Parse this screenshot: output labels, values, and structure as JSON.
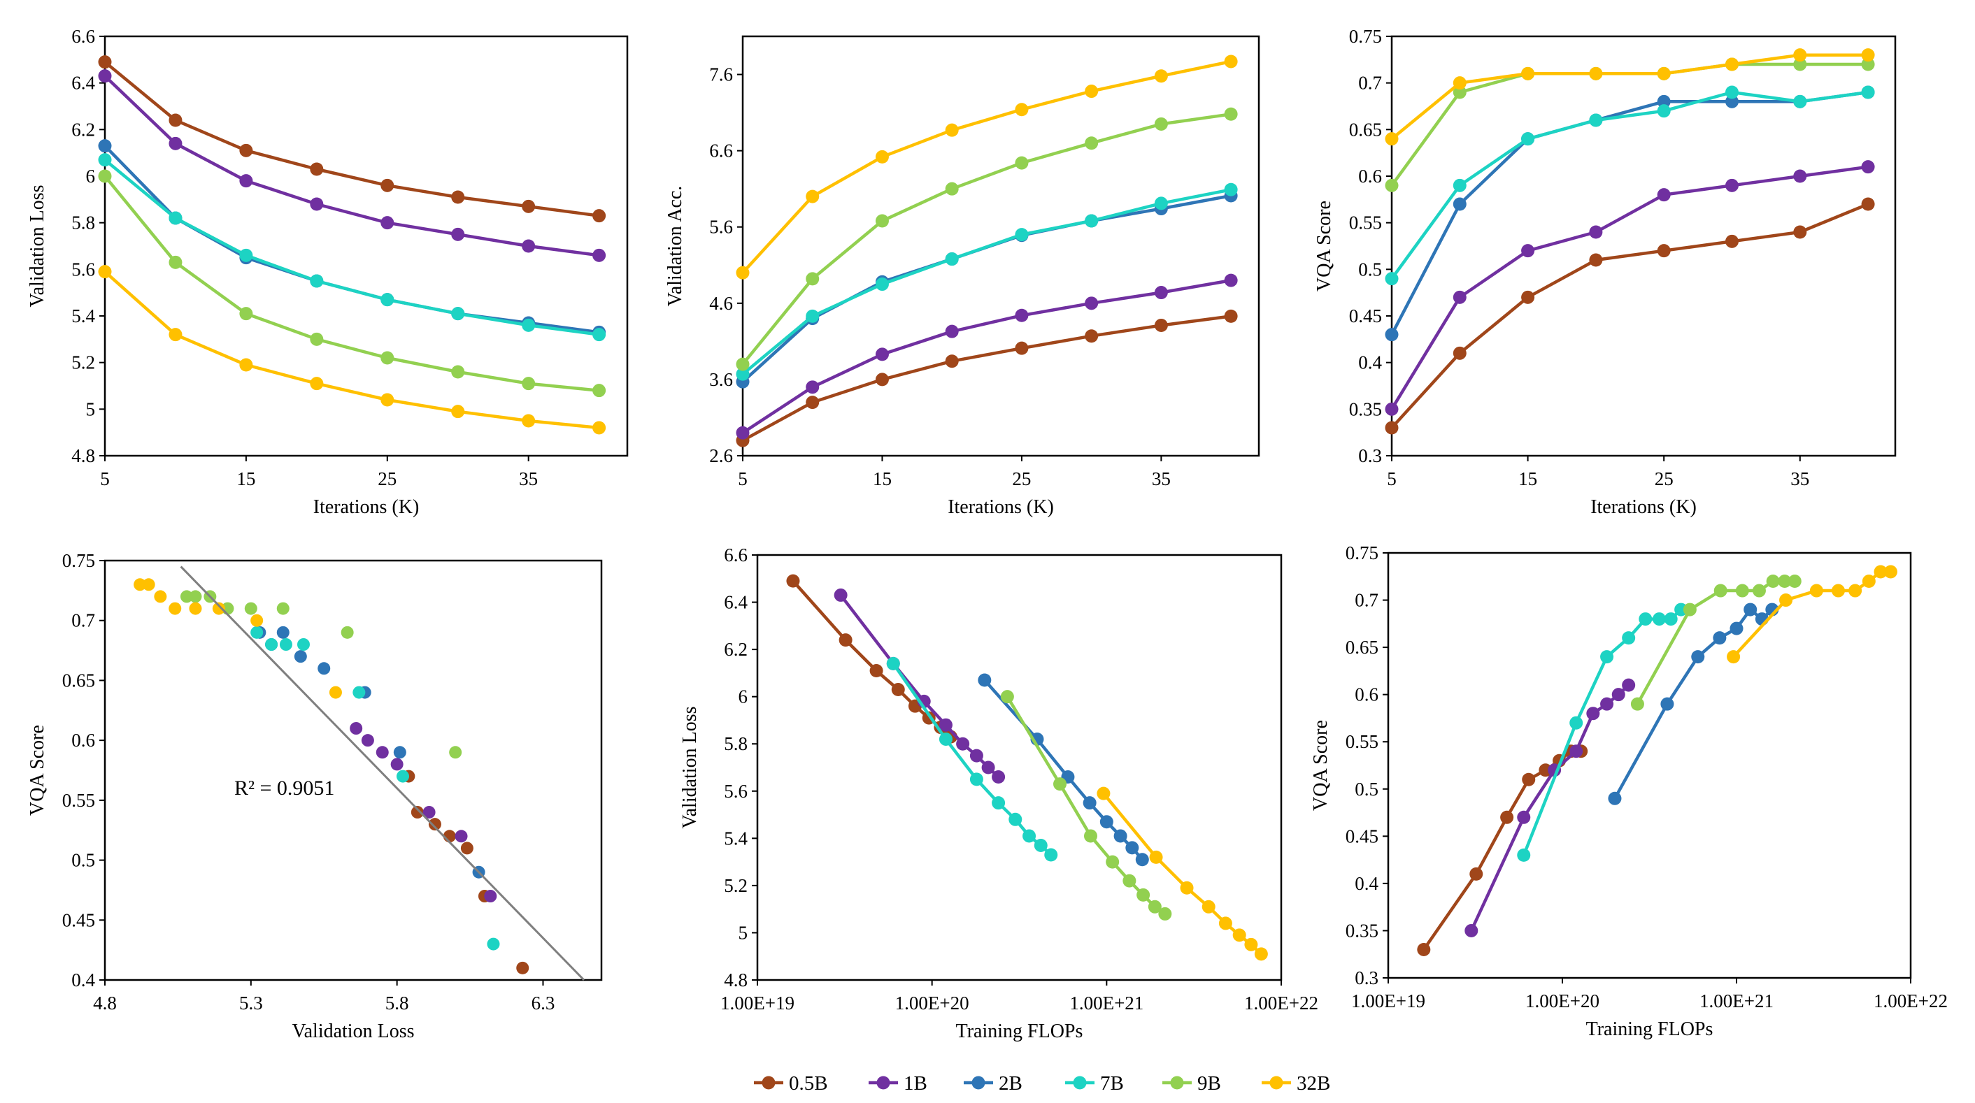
{
  "legend": {
    "series": [
      {
        "name": "0.5B",
        "color": "#A0461A"
      },
      {
        "name": "1B",
        "color": "#7030A0"
      },
      {
        "name": "2B",
        "color": "#2E75B6"
      },
      {
        "name": "7B",
        "color": "#1DD3C3"
      },
      {
        "name": "9B",
        "color": "#92D050"
      },
      {
        "name": "32B",
        "color": "#FFC000"
      }
    ]
  },
  "chart_data": [
    {
      "id": "loss_vs_iter",
      "type": "line",
      "xlabel": "Iterations (K)",
      "ylabel": "Validation Loss",
      "xlim": [
        5,
        42
      ],
      "ylim": [
        4.8,
        6.6
      ],
      "xticks": [
        5,
        15,
        25,
        35
      ],
      "xtick_labels": [
        "5",
        "15",
        "25",
        "35"
      ],
      "yticks": [
        4.8,
        5,
        5.2,
        5.4,
        5.6,
        5.8,
        6,
        6.2,
        6.4,
        6.6
      ],
      "ytick_labels": [
        "4.8",
        "5",
        "5.2",
        "5.4",
        "5.6",
        "5.8",
        "6",
        "6.2",
        "6.4",
        "6.6"
      ],
      "x": [
        5,
        10,
        15,
        20,
        25,
        30,
        35,
        40
      ],
      "series": [
        {
          "name": "0.5B",
          "values": [
            6.49,
            6.24,
            6.11,
            6.03,
            5.96,
            5.91,
            5.87,
            5.83
          ]
        },
        {
          "name": "1B",
          "values": [
            6.43,
            6.14,
            5.98,
            5.88,
            5.8,
            5.75,
            5.7,
            5.66
          ]
        },
        {
          "name": "2B",
          "values": [
            6.13,
            5.82,
            5.65,
            5.55,
            5.47,
            5.41,
            5.37,
            5.33
          ]
        },
        {
          "name": "7B",
          "values": [
            6.07,
            5.82,
            5.66,
            5.55,
            5.47,
            5.41,
            5.36,
            5.32
          ]
        },
        {
          "name": "9B",
          "values": [
            6.0,
            5.63,
            5.41,
            5.3,
            5.22,
            5.16,
            5.11,
            5.08
          ]
        },
        {
          "name": "32B",
          "values": [
            5.59,
            5.32,
            5.19,
            5.11,
            5.04,
            4.99,
            4.95,
            4.92
          ]
        }
      ]
    },
    {
      "id": "acc_vs_iter",
      "type": "line",
      "xlabel": "Iterations (K)",
      "ylabel": "Validation Acc.",
      "xlim": [
        5,
        42
      ],
      "ylim": [
        2.6,
        8.1
      ],
      "xticks": [
        5,
        15,
        25,
        35
      ],
      "xtick_labels": [
        "5",
        "15",
        "25",
        "35"
      ],
      "yticks": [
        2.6,
        3.6,
        4.6,
        5.6,
        6.6,
        7.6
      ],
      "ytick_labels": [
        "2.6",
        "3.6",
        "4.6",
        "5.6",
        "6.6",
        "7.6"
      ],
      "x": [
        5,
        10,
        15,
        20,
        25,
        30,
        35,
        40
      ],
      "series": [
        {
          "name": "0.5B",
          "values": [
            2.8,
            3.3,
            3.6,
            3.84,
            4.01,
            4.17,
            4.31,
            4.43
          ]
        },
        {
          "name": "1B",
          "values": [
            2.9,
            3.5,
            3.93,
            4.23,
            4.44,
            4.6,
            4.74,
            4.9
          ]
        },
        {
          "name": "2B",
          "values": [
            3.57,
            4.4,
            4.88,
            5.18,
            5.49,
            5.68,
            5.84,
            6.01
          ]
        },
        {
          "name": "7B",
          "values": [
            3.67,
            4.43,
            4.85,
            5.18,
            5.5,
            5.68,
            5.91,
            6.09
          ]
        },
        {
          "name": "9B",
          "values": [
            3.8,
            4.92,
            5.68,
            6.1,
            6.44,
            6.7,
            6.95,
            7.08
          ]
        },
        {
          "name": "32B",
          "values": [
            5.0,
            6.0,
            6.52,
            6.87,
            7.14,
            7.38,
            7.58,
            7.77
          ]
        }
      ]
    },
    {
      "id": "vqa_vs_iter",
      "type": "line",
      "xlabel": "Iterations (K)",
      "ylabel": "VQA Score",
      "xlim": [
        5,
        42
      ],
      "ylim": [
        0.3,
        0.75
      ],
      "xticks": [
        5,
        15,
        25,
        35
      ],
      "xtick_labels": [
        "5",
        "15",
        "25",
        "35"
      ],
      "yticks": [
        0.3,
        0.35,
        0.4,
        0.45,
        0.5,
        0.55,
        0.6,
        0.65,
        0.7,
        0.75
      ],
      "ytick_labels": [
        "0.3",
        "0.35",
        "0.4",
        "0.45",
        "0.5",
        "0.55",
        "0.6",
        "0.65",
        "0.7",
        "0.75"
      ],
      "x": [
        5,
        10,
        15,
        20,
        25,
        30,
        35,
        40
      ],
      "series": [
        {
          "name": "0.5B",
          "values": [
            0.33,
            0.41,
            0.47,
            0.51,
            0.52,
            0.53,
            0.54,
            0.57
          ]
        },
        {
          "name": "1B",
          "values": [
            0.35,
            0.47,
            0.52,
            0.54,
            0.58,
            0.59,
            0.6,
            0.61
          ]
        },
        {
          "name": "2B",
          "values": [
            0.43,
            0.57,
            0.64,
            0.66,
            0.68,
            0.68,
            0.68,
            0.69
          ]
        },
        {
          "name": "7B",
          "values": [
            0.49,
            0.59,
            0.64,
            0.66,
            0.67,
            0.69,
            0.68,
            0.69
          ]
        },
        {
          "name": "9B",
          "values": [
            0.59,
            0.69,
            0.71,
            0.71,
            0.71,
            0.72,
            0.72,
            0.72
          ]
        },
        {
          "name": "32B",
          "values": [
            0.64,
            0.7,
            0.71,
            0.71,
            0.71,
            0.72,
            0.73,
            0.73
          ]
        }
      ]
    },
    {
      "id": "vqa_vs_loss",
      "type": "scatter",
      "xlabel": "Validation Loss",
      "ylabel": "VQA Score",
      "xlim": [
        4.8,
        6.5
      ],
      "ylim": [
        0.4,
        0.75
      ],
      "xticks": [
        4.8,
        5.3,
        5.8,
        6.3
      ],
      "xtick_labels": [
        "4.8",
        "5.3",
        "5.8",
        "6.3"
      ],
      "yticks": [
        0.4,
        0.45,
        0.5,
        0.55,
        0.6,
        0.65,
        0.7,
        0.75
      ],
      "ytick_labels": [
        "0.4",
        "0.45",
        "0.5",
        "0.55",
        "0.6",
        "0.65",
        "0.7",
        "0.75"
      ],
      "annotation": "R² = 0.9051",
      "trendline": {
        "x": [
          5.06,
          6.44
        ],
        "y": [
          0.745,
          0.4
        ]
      },
      "series": [
        {
          "name": "0.5B",
          "x": [
            6.23,
            6.1,
            6.04,
            5.98,
            5.93,
            5.87,
            5.84
          ],
          "y": [
            0.41,
            0.47,
            0.51,
            0.52,
            0.53,
            0.54,
            0.57
          ]
        },
        {
          "name": "1B",
          "x": [
            6.12,
            6.02,
            5.91,
            5.8,
            5.75,
            5.7,
            5.66
          ],
          "y": [
            0.47,
            0.52,
            0.54,
            0.58,
            0.59,
            0.6,
            0.61
          ]
        },
        {
          "name": "2B",
          "x": [
            6.08,
            5.81,
            5.69,
            5.55,
            5.47,
            5.41,
            5.37,
            5.33
          ],
          "y": [
            0.49,
            0.59,
            0.64,
            0.66,
            0.67,
            0.69,
            0.68,
            0.69
          ]
        },
        {
          "name": "7B",
          "x": [
            6.13,
            5.82,
            5.67,
            5.48,
            5.42,
            5.37,
            5.32
          ],
          "y": [
            0.43,
            0.57,
            0.64,
            0.68,
            0.68,
            0.68,
            0.69
          ]
        },
        {
          "name": "9B",
          "x": [
            6.0,
            5.63,
            5.41,
            5.3,
            5.22,
            5.16,
            5.11,
            5.08
          ],
          "y": [
            0.59,
            0.69,
            0.71,
            0.71,
            0.71,
            0.72,
            0.72,
            0.72
          ]
        },
        {
          "name": "32B",
          "x": [
            5.59,
            5.32,
            5.19,
            5.11,
            5.04,
            4.99,
            4.95,
            4.92
          ],
          "y": [
            0.64,
            0.7,
            0.71,
            0.71,
            0.71,
            0.72,
            0.73,
            0.73
          ]
        }
      ]
    },
    {
      "id": "loss_vs_flops",
      "type": "line",
      "xscale": "log",
      "xlabel": "Training  FLOPs",
      "ylabel": "Validation Loss",
      "xlim": [
        1e+19,
        1e+22
      ],
      "ylim": [
        4.8,
        6.6
      ],
      "xticks": [
        1e+19,
        1e+20,
        1e+21,
        1e+22
      ],
      "xtick_labels": [
        "1.00E+19",
        "1.00E+20",
        "1.00E+21",
        "1.00E+22"
      ],
      "yticks": [
        4.8,
        5,
        5.2,
        5.4,
        5.6,
        5.8,
        6,
        6.2,
        6.4,
        6.6
      ],
      "ytick_labels": [
        "4.8",
        "5",
        "5.2",
        "5.4",
        "5.6",
        "5.8",
        "6",
        "6.2",
        "6.4",
        "6.6"
      ],
      "series": [
        {
          "name": "0.5B",
          "x": [
            1.6e+19,
            3.2e+19,
            4.8e+19,
            6.4e+19,
            8e+19,
            9.6e+19,
            1.12e+20,
            1.28e+20
          ],
          "values": [
            6.49,
            6.24,
            6.11,
            6.03,
            5.96,
            5.91,
            5.87,
            5.83
          ]
        },
        {
          "name": "1B",
          "x": [
            3e+19,
            6e+19,
            9e+19,
            1.2e+20,
            1.5e+20,
            1.8e+20,
            2.1e+20,
            2.4e+20
          ],
          "values": [
            6.43,
            6.14,
            5.98,
            5.88,
            5.8,
            5.75,
            5.7,
            5.66
          ]
        },
        {
          "name": "2B",
          "x": [
            2e+20,
            4e+20,
            6e+20,
            8e+20,
            1e+21,
            1.2e+21,
            1.4e+21,
            1.6e+21
          ],
          "values": [
            6.07,
            5.82,
            5.66,
            5.55,
            5.47,
            5.41,
            5.36,
            5.31
          ]
        },
        {
          "name": "7B",
          "x": [
            6e+19,
            1.2e+20,
            1.8e+20,
            2.4e+20,
            3e+20,
            3.6e+20,
            4.2e+20,
            4.8e+20
          ],
          "values": [
            6.14,
            5.82,
            5.65,
            5.55,
            5.48,
            5.41,
            5.37,
            5.33
          ]
        },
        {
          "name": "9B",
          "x": [
            2.7e+20,
            5.4e+20,
            8.1e+20,
            1.08e+21,
            1.35e+21,
            1.62e+21,
            1.89e+21,
            2.16e+21
          ],
          "values": [
            6.0,
            5.63,
            5.41,
            5.3,
            5.22,
            5.16,
            5.11,
            5.08
          ]
        },
        {
          "name": "32B",
          "x": [
            9.6e+20,
            1.92e+21,
            2.88e+21,
            3.84e+21,
            4.8e+21,
            5.76e+21,
            6.72e+21,
            7.68e+21
          ],
          "values": [
            5.59,
            5.32,
            5.19,
            5.11,
            5.04,
            4.99,
            4.95,
            4.91
          ]
        }
      ]
    },
    {
      "id": "vqa_vs_flops",
      "type": "line",
      "xscale": "log",
      "xlabel": "Training  FLOPs",
      "ylabel": "VQA Score",
      "xlim": [
        1e+19,
        1e+22
      ],
      "ylim": [
        0.3,
        0.75
      ],
      "xticks": [
        1e+19,
        1e+20,
        1e+21,
        1e+22
      ],
      "xtick_labels": [
        "1.00E+19",
        "1.00E+20",
        "1.00E+21",
        "1.00E+22"
      ],
      "yticks": [
        0.3,
        0.35,
        0.4,
        0.45,
        0.5,
        0.55,
        0.6,
        0.65,
        0.7,
        0.75
      ],
      "ytick_labels": [
        "0.3",
        "0.35",
        "0.4",
        "0.45",
        "0.5",
        "0.55",
        "0.6",
        "0.65",
        "0.7",
        "0.75"
      ],
      "series": [
        {
          "name": "0.5B",
          "x": [
            1.6e+19,
            3.2e+19,
            4.8e+19,
            6.4e+19,
            8e+19,
            9.6e+19,
            1.12e+20,
            1.28e+20
          ],
          "values": [
            0.33,
            0.41,
            0.47,
            0.51,
            0.52,
            0.53,
            0.54,
            0.54
          ]
        },
        {
          "name": "1B",
          "x": [
            3e+19,
            6e+19,
            9e+19,
            1.2e+20,
            1.5e+20,
            1.8e+20,
            2.1e+20,
            2.4e+20
          ],
          "values": [
            0.35,
            0.47,
            0.52,
            0.54,
            0.58,
            0.59,
            0.6,
            0.61
          ]
        },
        {
          "name": "2B",
          "x": [
            2e+20,
            4e+20,
            6e+20,
            8e+20,
            1e+21,
            1.2e+21,
            1.4e+21,
            1.6e+21
          ],
          "values": [
            0.49,
            0.59,
            0.64,
            0.66,
            0.67,
            0.69,
            0.68,
            0.69
          ]
        },
        {
          "name": "7B",
          "x": [
            6e+19,
            1.2e+20,
            1.8e+20,
            2.4e+20,
            3e+20,
            3.6e+20,
            4.2e+20,
            4.8e+20
          ],
          "values": [
            0.43,
            0.57,
            0.64,
            0.66,
            0.68,
            0.68,
            0.68,
            0.69
          ]
        },
        {
          "name": "9B",
          "x": [
            2.7e+20,
            5.4e+20,
            8.1e+20,
            1.08e+21,
            1.35e+21,
            1.62e+21,
            1.89e+21,
            2.16e+21
          ],
          "values": [
            0.59,
            0.69,
            0.71,
            0.71,
            0.71,
            0.72,
            0.72,
            0.72
          ]
        },
        {
          "name": "32B",
          "x": [
            9.6e+20,
            1.92e+21,
            2.88e+21,
            3.84e+21,
            4.8e+21,
            5.76e+21,
            6.72e+21,
            7.68e+21
          ],
          "values": [
            0.64,
            0.7,
            0.71,
            0.71,
            0.71,
            0.72,
            0.73,
            0.73
          ]
        }
      ]
    }
  ]
}
